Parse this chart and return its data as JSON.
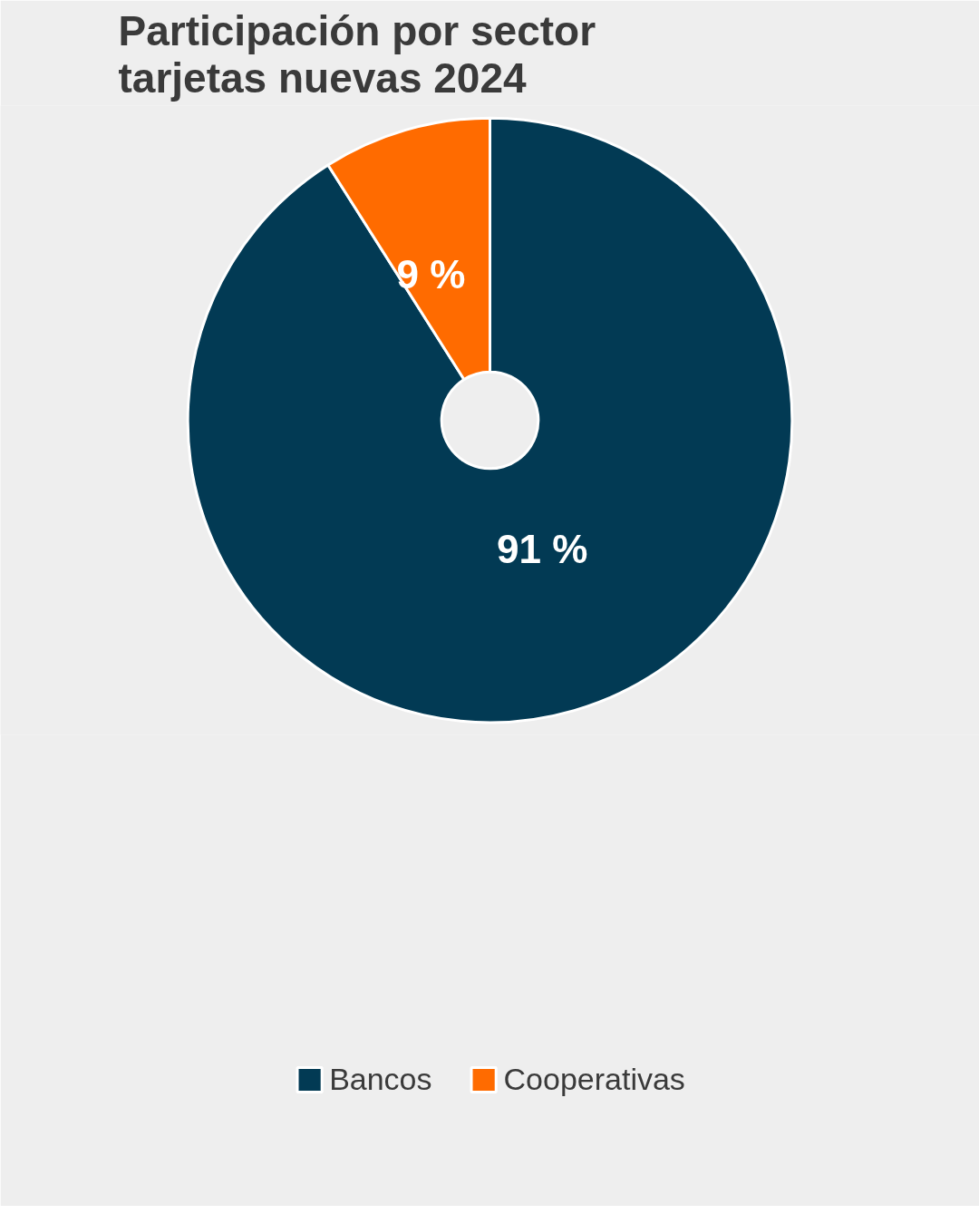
{
  "chart_data": {
    "type": "donut",
    "title": "Participación por sector\ntarjetas nuevas 2024",
    "categories": [
      "Bancos",
      "Cooperativas"
    ],
    "values": [
      91,
      9
    ],
    "colors": [
      "#023a54",
      "#ff6b00"
    ],
    "value_labels": [
      "91 %",
      "9 %"
    ],
    "legend": "bottom"
  }
}
